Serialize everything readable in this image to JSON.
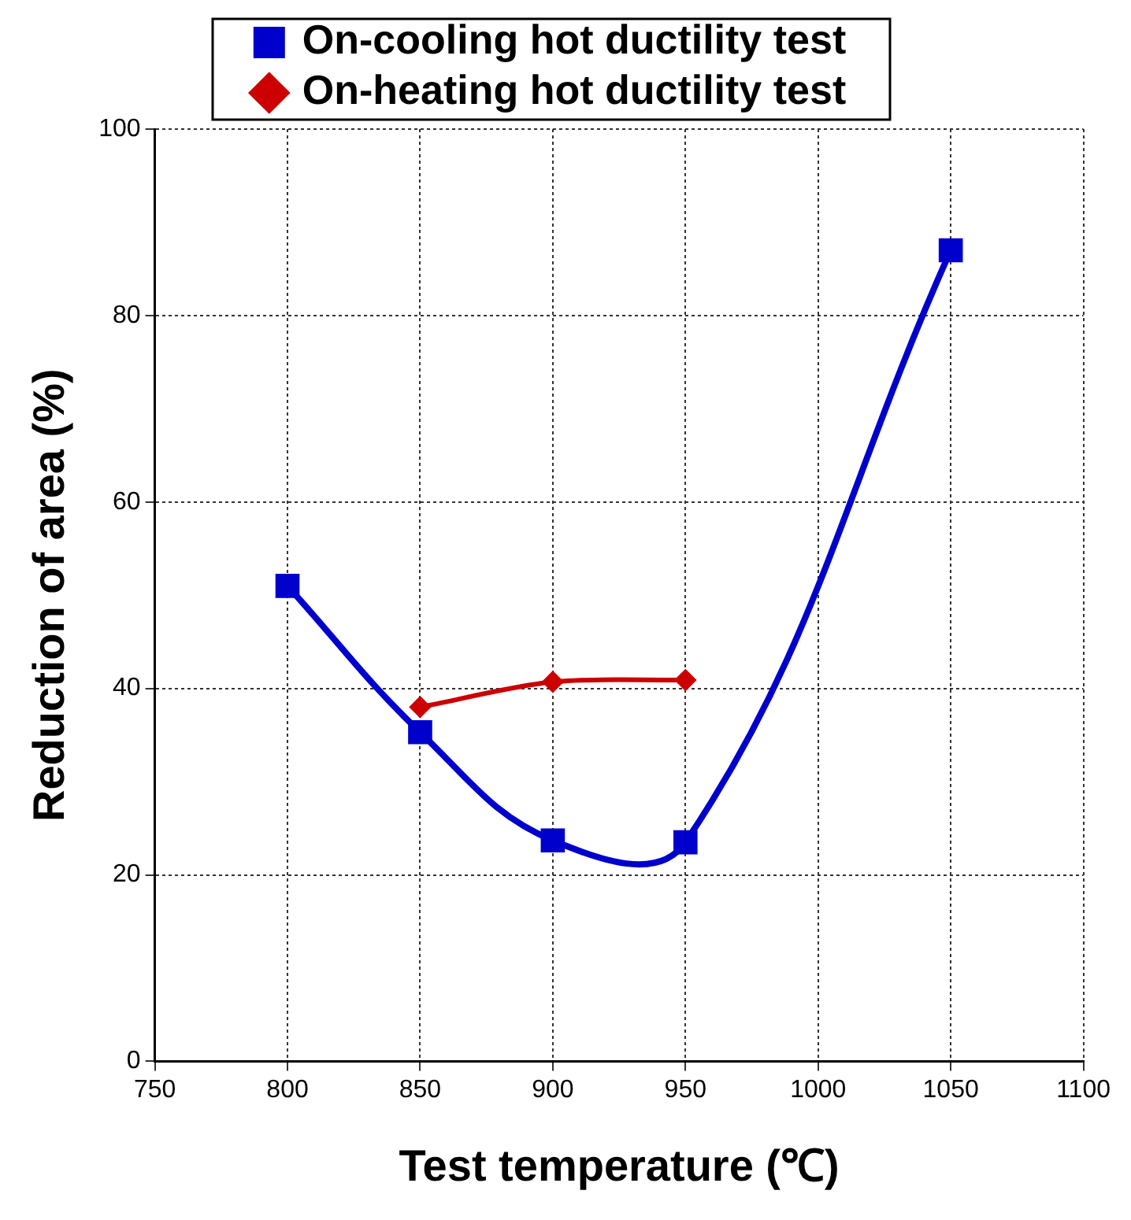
{
  "chart_data": {
    "type": "line",
    "xlabel": "Test temperature (℃)",
    "ylabel": "Reduction of area (%)",
    "x": [
      800,
      850,
      900,
      950,
      1050
    ],
    "series": [
      {
        "name": "On-cooling hot ductility test",
        "color": "#0000cc",
        "marker": "square",
        "values": [
          51,
          35.3,
          23.7,
          23.5,
          87
        ]
      },
      {
        "name": "On-heating hot ductility test",
        "color": "#cc0000",
        "marker": "diamond",
        "x": [
          850,
          900,
          950
        ],
        "values": [
          38,
          40.7,
          40.9
        ]
      }
    ],
    "xlim": [
      750,
      1100
    ],
    "xticks": [
      750,
      800,
      850,
      900,
      950,
      1000,
      1050,
      1100
    ],
    "ylim": [
      0,
      100
    ],
    "yticks": [
      0,
      20,
      40,
      60,
      80,
      100
    ],
    "grid": true,
    "legend": "top"
  }
}
